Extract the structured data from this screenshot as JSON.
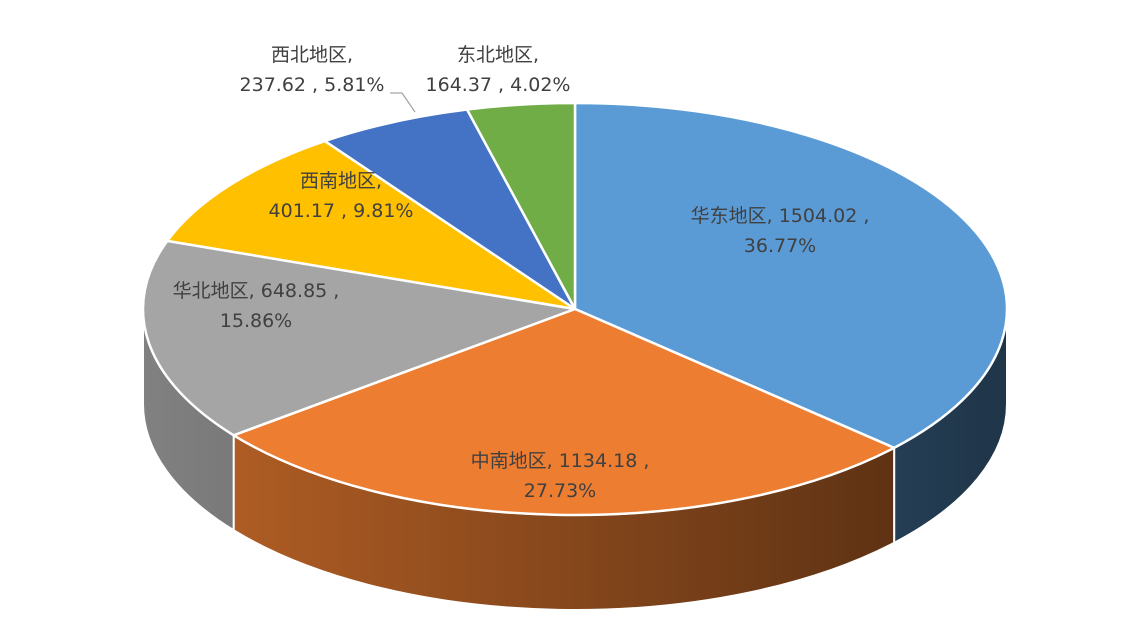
{
  "chart_data": {
    "type": "pie",
    "title": "",
    "categories": [
      "华东地区",
      "中南地区",
      "华北地区",
      "西南地区",
      "西北地区",
      "东北地区"
    ],
    "values": [
      1504.02,
      1134.18,
      648.85,
      401.17,
      237.62,
      164.37
    ],
    "percents": [
      "36.77%",
      "27.73%",
      "15.86%",
      "9.81%",
      "5.81%",
      "4.02%"
    ],
    "colors": [
      "#5B9BD5",
      "#ED7D31",
      "#A5A5A5",
      "#FFC000",
      "#4472C4",
      "#70AD47"
    ],
    "legend": "none",
    "labels": [
      {
        "line1": "华东地区, 1504.02 ,",
        "line2": "36.77%"
      },
      {
        "line1": "中南地区, 1134.18 ,",
        "line2": "27.73%"
      },
      {
        "line1": "华北地区, 648.85 ,",
        "line2": "15.86%"
      },
      {
        "line1": "西南地区,",
        "line2": "401.17 , 9.81%"
      },
      {
        "line1": "西北地区,",
        "line2": "237.62 , 5.81%"
      },
      {
        "line1": "东北地区,",
        "line2": "164.37 , 4.02%"
      }
    ]
  }
}
